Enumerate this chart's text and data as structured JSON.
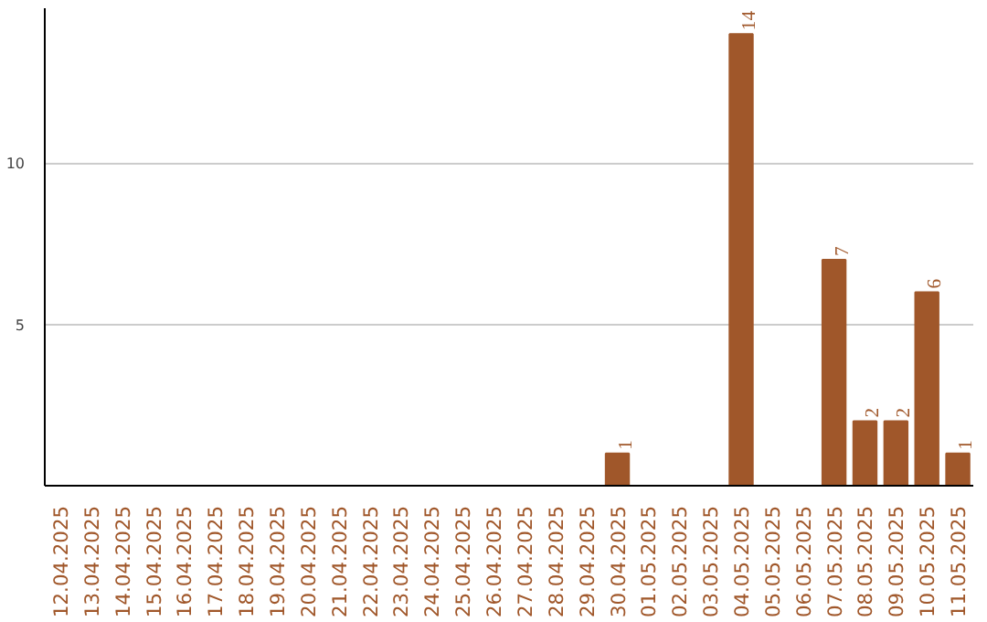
{
  "chart_data": {
    "type": "bar",
    "categories": [
      "12.04.2025",
      "13.04.2025",
      "14.04.2025",
      "15.04.2025",
      "16.04.2025",
      "17.04.2025",
      "18.04.2025",
      "19.04.2025",
      "20.04.2025",
      "21.04.2025",
      "22.04.2025",
      "23.04.2025",
      "24.04.2025",
      "25.04.2025",
      "26.04.2025",
      "27.04.2025",
      "28.04.2025",
      "29.04.2025",
      "30.04.2025",
      "01.05.2025",
      "02.05.2025",
      "03.05.2025",
      "04.05.2025",
      "05.05.2025",
      "06.05.2025",
      "07.05.2025",
      "08.05.2025",
      "09.05.2025",
      "10.05.2025",
      "11.05.2025"
    ],
    "values": [
      0,
      0,
      0,
      0,
      0,
      0,
      0,
      0,
      0,
      0,
      0,
      0,
      0,
      0,
      0,
      0,
      0,
      0,
      1,
      0,
      0,
      0,
      14,
      0,
      0,
      7,
      2,
      2,
      6,
      1
    ],
    "value_labels": [
      null,
      null,
      null,
      null,
      null,
      null,
      null,
      null,
      null,
      null,
      null,
      null,
      null,
      null,
      null,
      null,
      null,
      null,
      "1",
      null,
      null,
      null,
      "14",
      null,
      null,
      "7",
      "2",
      "2",
      "6",
      "1"
    ],
    "color": "#a0572a",
    "ylim": [
      0,
      14.8
    ],
    "yticks": [
      5,
      10
    ],
    "grid": "y"
  }
}
